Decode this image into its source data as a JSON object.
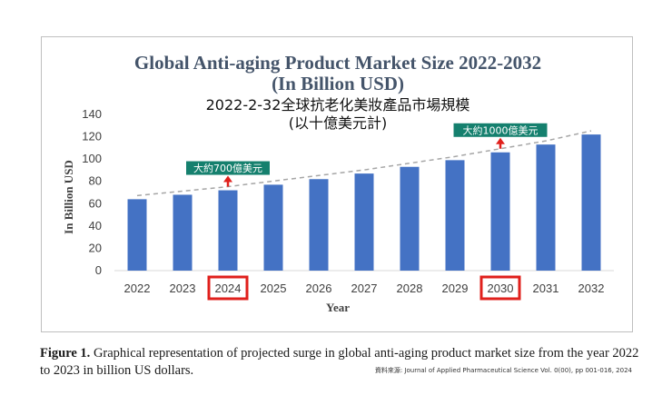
{
  "chart_data": {
    "type": "bar",
    "title": "Global Anti-aging Product Market Size 2022-2032",
    "title_line2": "(In Billion USD)",
    "subtitle": "2022-2-32全球抗老化美妝產品市場規模",
    "subtitle_line2": "(以十億美元計)",
    "xlabel": "Year",
    "ylabel": "In Billion USD",
    "categories": [
      "2022",
      "2023",
      "2024",
      "2025",
      "2026",
      "2027",
      "2028",
      "2029",
      "2030",
      "2031",
      "2032"
    ],
    "values": [
      64,
      68,
      72,
      77,
      82,
      87,
      93,
      99,
      106,
      113,
      122
    ],
    "ylim": [
      0,
      140
    ],
    "yticks": [
      "0",
      "20",
      "40",
      "60",
      "80",
      "100",
      "120",
      "140"
    ],
    "trendline": "dashed",
    "grid": false,
    "bar_color": "#4472c4",
    "highlight_color": "#e0201c",
    "badge_color": "#15806e",
    "annotations": [
      {
        "category": "2024",
        "text": "大約700億美元"
      },
      {
        "category": "2030",
        "text": "大約1000億美元"
      }
    ],
    "highlighted_categories": [
      "2024",
      "2030"
    ]
  },
  "caption": {
    "label": "Figure 1.",
    "text": "Graphical representation of projected surge in global anti-aging product market size from the year 2022 to 2023 in billion US dollars."
  },
  "source": "資料來源: Journal of Applied Pharmaceutical Science Vol. 0(00), pp 001-016, 2024"
}
